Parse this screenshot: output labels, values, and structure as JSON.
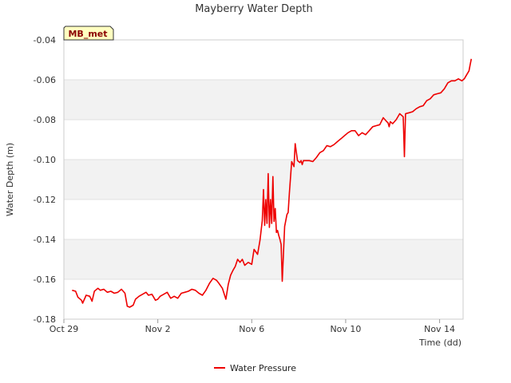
{
  "chart_data": {
    "type": "line",
    "title": "Mayberry Water Depth",
    "xlabel": "Time (dd)",
    "ylabel": "Water Depth (m)",
    "badge": "MB_met",
    "xlim": [
      0,
      17
    ],
    "ylim": [
      -0.18,
      -0.04
    ],
    "x_ticks": [
      {
        "value": 0,
        "label": "Oct 29"
      },
      {
        "value": 4,
        "label": "Nov 2"
      },
      {
        "value": 8,
        "label": "Nov 6"
      },
      {
        "value": 12,
        "label": "Nov 10"
      },
      {
        "value": 16,
        "label": "Nov 14"
      }
    ],
    "y_ticks": [
      {
        "value": -0.04,
        "label": "-0.04"
      },
      {
        "value": -0.06,
        "label": "-0.06"
      },
      {
        "value": -0.08,
        "label": "-0.08"
      },
      {
        "value": -0.1,
        "label": "-0.10"
      },
      {
        "value": -0.12,
        "label": "-0.12"
      },
      {
        "value": -0.14,
        "label": "-0.14"
      },
      {
        "value": -0.16,
        "label": "-0.16"
      },
      {
        "value": -0.18,
        "label": "-0.18"
      }
    ],
    "grid": true,
    "legend_position": "bottom-center",
    "colors": {
      "series": "#ee0000",
      "band": "#f2f2f2",
      "grid": "#e0e0e0",
      "badge_fill": "#ffffc0"
    },
    "series": [
      {
        "name": "Water Pressure",
        "x": [
          0.35,
          0.5,
          0.6,
          0.75,
          0.8,
          0.95,
          1.1,
          1.2,
          1.3,
          1.45,
          1.55,
          1.7,
          1.85,
          2.0,
          2.15,
          2.3,
          2.45,
          2.6,
          2.7,
          2.8,
          2.95,
          3.05,
          3.2,
          3.35,
          3.5,
          3.6,
          3.75,
          3.9,
          4.0,
          4.1,
          4.25,
          4.4,
          4.55,
          4.7,
          4.85,
          5.0,
          5.15,
          5.3,
          5.45,
          5.6,
          5.75,
          5.9,
          6.05,
          6.2,
          6.35,
          6.5,
          6.6,
          6.75,
          6.9,
          7.0,
          7.1,
          7.2,
          7.3,
          7.4,
          7.5,
          7.6,
          7.7,
          7.85,
          8.0,
          8.1,
          8.25,
          8.35,
          8.45,
          8.5,
          8.55,
          8.6,
          8.65,
          8.7,
          8.75,
          8.8,
          8.85,
          8.9,
          8.95,
          9.0,
          9.05,
          9.1,
          9.15,
          9.2,
          9.25,
          9.3,
          9.4,
          9.5,
          9.55,
          9.6,
          9.7,
          9.8,
          9.85,
          9.95,
          10.05,
          10.1,
          10.15,
          10.2,
          10.3,
          10.45,
          10.6,
          10.75,
          10.9,
          11.05,
          11.2,
          11.35,
          11.5,
          11.65,
          11.8,
          11.95,
          12.1,
          12.25,
          12.4,
          12.55,
          12.7,
          12.85,
          13.0,
          13.15,
          13.3,
          13.45,
          13.6,
          13.75,
          13.8,
          13.85,
          13.9,
          14.0,
          14.15,
          14.3,
          14.45,
          14.5,
          14.55,
          14.7,
          14.85,
          15.0,
          15.15,
          15.3,
          15.45,
          15.6,
          15.75,
          15.9,
          16.05,
          16.2,
          16.35,
          16.5,
          16.65,
          16.8,
          16.95,
          17.05,
          17.15,
          17.25,
          17.3,
          17.35
        ],
        "y": [
          -0.1655,
          -0.166,
          -0.169,
          -0.1705,
          -0.172,
          -0.168,
          -0.1685,
          -0.171,
          -0.166,
          -0.1645,
          -0.1655,
          -0.165,
          -0.1665,
          -0.166,
          -0.167,
          -0.1665,
          -0.165,
          -0.167,
          -0.1735,
          -0.174,
          -0.173,
          -0.17,
          -0.1685,
          -0.1675,
          -0.1665,
          -0.168,
          -0.1675,
          -0.1705,
          -0.17,
          -0.1685,
          -0.1675,
          -0.1665,
          -0.1695,
          -0.1685,
          -0.1695,
          -0.167,
          -0.1665,
          -0.166,
          -0.165,
          -0.1655,
          -0.167,
          -0.168,
          -0.1655,
          -0.162,
          -0.1595,
          -0.1605,
          -0.162,
          -0.1645,
          -0.17,
          -0.1625,
          -0.158,
          -0.1555,
          -0.1535,
          -0.15,
          -0.1515,
          -0.15,
          -0.153,
          -0.1515,
          -0.1525,
          -0.145,
          -0.1475,
          -0.1405,
          -0.1305,
          -0.115,
          -0.133,
          -0.12,
          -0.132,
          -0.107,
          -0.134,
          -0.12,
          -0.132,
          -0.1085,
          -0.131,
          -0.1245,
          -0.1365,
          -0.1355,
          -0.138,
          -0.14,
          -0.1425,
          -0.161,
          -0.1335,
          -0.1275,
          -0.1265,
          -0.117,
          -0.101,
          -0.1035,
          -0.092,
          -0.1005,
          -0.1015,
          -0.1005,
          -0.1025,
          -0.1005,
          -0.1005,
          -0.1005,
          -0.101,
          -0.099,
          -0.0965,
          -0.0955,
          -0.093,
          -0.0935,
          -0.0925,
          -0.091,
          -0.0895,
          -0.088,
          -0.0865,
          -0.0855,
          -0.0855,
          -0.088,
          -0.0865,
          -0.0875,
          -0.0855,
          -0.0835,
          -0.083,
          -0.0825,
          -0.079,
          -0.081,
          -0.0815,
          -0.0835,
          -0.081,
          -0.082,
          -0.08,
          -0.077,
          -0.0785,
          -0.0985,
          -0.077,
          -0.0765,
          -0.076,
          -0.0745,
          -0.0735,
          -0.073,
          -0.0705,
          -0.0695,
          -0.0675,
          -0.067,
          -0.0665,
          -0.0645,
          -0.0615,
          -0.0605,
          -0.0605,
          -0.0595,
          -0.0605,
          -0.0595,
          -0.0575,
          -0.0555,
          -0.0525,
          -0.0495
        ]
      }
    ]
  }
}
